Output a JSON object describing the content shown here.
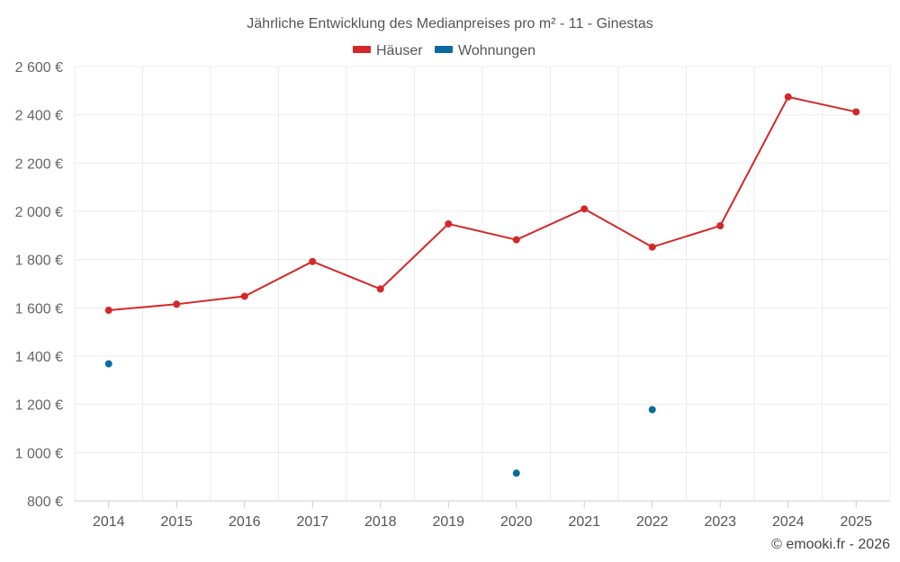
{
  "chart_data": {
    "type": "line",
    "title": "Jährliche Entwicklung des Medianpreises pro m² - 11 - Ginestas",
    "categories": [
      "2014",
      "2015",
      "2016",
      "2017",
      "2018",
      "2019",
      "2020",
      "2021",
      "2022",
      "2023",
      "2024",
      "2025"
    ],
    "series": [
      {
        "name": "Häuser",
        "color": "#d62728",
        "values": [
          1590,
          1615,
          1648,
          1792,
          1678,
          1948,
          1882,
          2010,
          1852,
          1940,
          2474,
          2412
        ]
      },
      {
        "name": "Wohnungen",
        "color": "#0a6aa1",
        "values": [
          1368,
          null,
          null,
          null,
          null,
          null,
          915,
          null,
          1178,
          null,
          null,
          null
        ]
      }
    ],
    "ylim": [
      800,
      2600
    ],
    "yticks": [
      800,
      1000,
      1200,
      1400,
      1600,
      1800,
      2000,
      2200,
      2400,
      2600
    ],
    "ytick_labels": [
      "800 €",
      "1 000 €",
      "1 200 €",
      "1 400 €",
      "1 600 €",
      "1 800 €",
      "2 000 €",
      "2 200 €",
      "2 400 €",
      "2 600 €"
    ],
    "xlabel": "",
    "ylabel": "",
    "legend_position": "top-center",
    "grid": true
  },
  "credit": "© emooki.fr - 2026"
}
